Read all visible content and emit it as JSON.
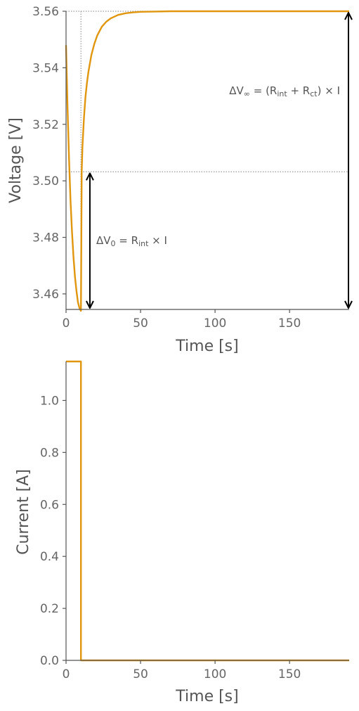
{
  "colors": {
    "series": "#E0960F",
    "axis": "#555555",
    "text": "#666666",
    "ref": "#999999",
    "arrow": "#000000"
  },
  "chart_data": [
    {
      "type": "line",
      "xlabel": "Time [s]",
      "ylabel": "Voltage [V]",
      "xlim": [
        0,
        190
      ],
      "ylim": [
        3.4545,
        3.56
      ],
      "xticks": [
        0,
        50,
        100,
        150
      ],
      "xtick_labels": [
        "0",
        "50",
        "100",
        "150"
      ],
      "yticks": [
        3.46,
        3.48,
        3.5,
        3.52,
        3.54,
        3.56
      ],
      "ytick_labels": [
        "3.46",
        "3.48",
        "3.50",
        "3.52",
        "3.54",
        "3.56"
      ],
      "grid": false,
      "series": [
        {
          "x": [
            0,
            1,
            2,
            3,
            4,
            5,
            6,
            7,
            8,
            9,
            10,
            10.5,
            11,
            12,
            13,
            14,
            15,
            17,
            19,
            21,
            24,
            27,
            30,
            35,
            40,
            45,
            50,
            60,
            70,
            80,
            90,
            100,
            120,
            140,
            160,
            190
          ],
          "y": [
            3.548,
            3.526,
            3.508,
            3.493,
            3.482,
            3.473,
            3.466,
            3.461,
            3.457,
            3.455,
            3.454,
            3.503,
            3.512,
            3.522,
            3.5295,
            3.5345,
            3.5385,
            3.5445,
            3.5485,
            3.5515,
            3.5545,
            3.5563,
            3.5575,
            3.5587,
            3.5593,
            3.5596,
            3.5598,
            3.5599,
            3.56,
            3.56,
            3.56,
            3.56,
            3.56,
            3.56,
            3.56,
            3.56
          ]
        }
      ],
      "reference_lines": {
        "v_x": 10,
        "h_y": [
          3.56,
          3.5032
        ]
      },
      "annotations": [
        {
          "kind": "double-arrow",
          "x": 16,
          "y_from": 3.5032,
          "y_to": 3.4545
        },
        {
          "kind": "double-arrow",
          "x": 190,
          "y_from": 3.56,
          "y_to": 3.4545
        }
      ],
      "annotation_labels": {
        "dv0": {
          "delta": "ΔV",
          "sub0": "0",
          "eq": " = R",
          "sub1": "int",
          "rest": " × I"
        },
        "dvinf": {
          "delta": "ΔV",
          "sub0": "∞",
          "eq": " = (R",
          "sub1": "int",
          "mid": " + R",
          "sub2": "ct",
          "rest": ") × I"
        }
      }
    },
    {
      "type": "line",
      "xlabel": "Time [s]",
      "ylabel": "Current  [A]",
      "xlim": [
        0,
        190
      ],
      "ylim": [
        0,
        1.15
      ],
      "xticks": [
        0,
        50,
        100,
        150
      ],
      "xtick_labels": [
        "0",
        "50",
        "100",
        "150"
      ],
      "yticks": [
        0.0,
        0.2,
        0.4,
        0.6,
        0.8,
        1.0
      ],
      "ytick_labels": [
        "0.0",
        "0.2",
        "0.4",
        "0.6",
        "0.8",
        "1.0"
      ],
      "grid": false,
      "series": [
        {
          "x": [
            0,
            10,
            10,
            190
          ],
          "y": [
            1.15,
            1.15,
            0,
            0
          ]
        }
      ]
    }
  ]
}
